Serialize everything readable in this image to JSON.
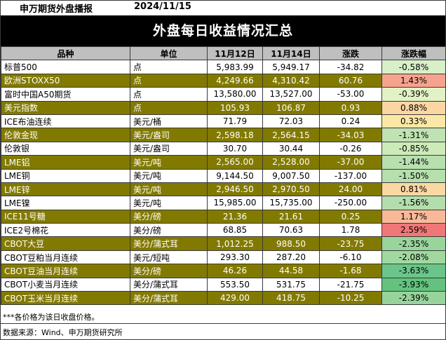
{
  "header": {
    "left": "申万期货外盘播报",
    "date": "2024/11/15"
  },
  "title": "外盘每日收益情况汇总",
  "columns": [
    "品种",
    "单位",
    "11月12日",
    "11月14日",
    "涨跌",
    "涨跌幅"
  ],
  "rows": [
    {
      "name": "标普500",
      "unit": "点",
      "v1": "5,983.99",
      "v2": "5,949.17",
      "chg": "-34.82",
      "pct": "-0.58%",
      "pct_color": "#d7f0c8"
    },
    {
      "name": "欧洲STOXX50",
      "unit": "点",
      "v1": "4,249.66",
      "v2": "4,310.42",
      "chg": "60.76",
      "pct": "1.43%",
      "pct_color": "#f6a38e"
    },
    {
      "name": "富时中国A50期货",
      "unit": "点",
      "v1": "13,580.00",
      "v2": "13,527.00",
      "chg": "-53.00",
      "pct": "-0.39%",
      "pct_color": "#e2f2c5"
    },
    {
      "name": "美元指数",
      "unit": "点",
      "v1": "105.93",
      "v2": "106.87",
      "chg": "0.93",
      "pct": "0.88%",
      "pct_color": "#fbd6a2"
    },
    {
      "name": "ICE布油连续",
      "unit": "美元/桶",
      "v1": "71.79",
      "v2": "72.03",
      "chg": "0.24",
      "pct": "0.33%",
      "pct_color": "#fce8a6"
    },
    {
      "name": "伦敦金现",
      "unit": "美元/盎司",
      "v1": "2,598.18",
      "v2": "2,564.15",
      "chg": "-34.03",
      "pct": "-1.31%",
      "pct_color": "#bfe3b2"
    },
    {
      "name": "伦敦银",
      "unit": "美元/盎司",
      "v1": "30.70",
      "v2": "30.44",
      "chg": "-0.26",
      "pct": "-0.85%",
      "pct_color": "#cdeab9"
    },
    {
      "name": "LME铝",
      "unit": "美元/吨",
      "v1": "2,565.00",
      "v2": "2,528.00",
      "chg": "-37.00",
      "pct": "-1.44%",
      "pct_color": "#b8e0ae"
    },
    {
      "name": "LME铜",
      "unit": "美元/吨",
      "v1": "9,144.50",
      "v2": "9,007.50",
      "chg": "-137.00",
      "pct": "-1.50%",
      "pct_color": "#b5dfac"
    },
    {
      "name": "LME锌",
      "unit": "美元/吨",
      "v1": "2,946.50",
      "v2": "2,970.50",
      "chg": "24.00",
      "pct": "0.81%",
      "pct_color": "#fbd8a3"
    },
    {
      "name": "LME镍",
      "unit": "美元/吨",
      "v1": "15,985.00",
      "v2": "15,735.00",
      "chg": "-250.00",
      "pct": "-1.56%",
      "pct_color": "#b3deab"
    },
    {
      "name": "ICE11号糖",
      "unit": "美分/磅",
      "v1": "21.36",
      "v2": "21.61",
      "chg": "0.25",
      "pct": "1.17%",
      "pct_color": "#f9b999"
    },
    {
      "name": "ICE2号棉花",
      "unit": "美分/磅",
      "v1": "68.85",
      "v2": "70.63",
      "chg": "1.78",
      "pct": "2.59%",
      "pct_color": "#f07777"
    },
    {
      "name": "CBOT大豆",
      "unit": "美分/蒲式耳",
      "v1": "1,012.25",
      "v2": "988.50",
      "chg": "-23.75",
      "pct": "-2.35%",
      "pct_color": "#98d59b"
    },
    {
      "name": "CBOT豆粕当月连续",
      "unit": "美元/短吨",
      "v1": "293.30",
      "v2": "287.20",
      "chg": "-6.10",
      "pct": "-2.08%",
      "pct_color": "#a1d8a0"
    },
    {
      "name": "CBOT豆油当月连续",
      "unit": "美分/磅",
      "v1": "46.26",
      "v2": "44.58",
      "chg": "-1.68",
      "pct": "-3.63%",
      "pct_color": "#6bc58a"
    },
    {
      "name": "CBOT小麦当月连续",
      "unit": "美分/蒲式耳",
      "v1": "553.50",
      "v2": "531.75",
      "chg": "-21.75",
      "pct": "-3.93%",
      "pct_color": "#63c27e"
    },
    {
      "name": "CBOT玉米当月连续",
      "unit": "美分/蒲式耳",
      "v1": "429.00",
      "v2": "418.75",
      "chg": "-10.25",
      "pct": "-2.39%",
      "pct_color": "#97d49b"
    }
  ],
  "note": "***各价格为该日收盘价格。",
  "source": "数据来源：Wind、申万期货研究所"
}
